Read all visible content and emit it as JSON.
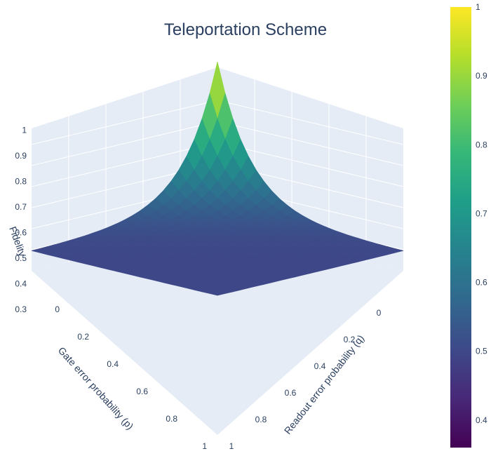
{
  "chart_data": {
    "type": "surface",
    "title": "Teleportation Scheme",
    "x_axis": {
      "label": "Gate error probability (p)",
      "range": [
        0,
        1
      ],
      "ticks": [
        "0",
        "0.2",
        "0.4",
        "0.6",
        "0.8",
        "1"
      ]
    },
    "y_axis": {
      "label": "Readout error probability (q)",
      "range": [
        0,
        1
      ],
      "ticks": [
        "0",
        "0.2",
        "0.4",
        "0.6",
        "0.8",
        "1"
      ]
    },
    "z_axis": {
      "label": "Fidelity",
      "range": [
        0.3,
        1
      ],
      "ticks": [
        "0.3",
        "0.4",
        "0.5",
        "0.6",
        "0.7",
        "0.8",
        "0.9",
        "1"
      ]
    },
    "colorscale": "Viridis",
    "colorbar": {
      "range": [
        0.36,
        1
      ],
      "ticks": [
        "0.4",
        "0.5",
        "0.6",
        "0.7",
        "0.8",
        "0.9",
        "1"
      ]
    },
    "surface_points": [
      {
        "p": 0,
        "q": 0,
        "fidelity": 1.0
      },
      {
        "p": 0.2,
        "q": 0,
        "fidelity": 0.63
      },
      {
        "p": 0.4,
        "q": 0,
        "fidelity": 0.52
      },
      {
        "p": 0.6,
        "q": 0,
        "fidelity": 0.5
      },
      {
        "p": 1,
        "q": 0,
        "fidelity": 0.5
      },
      {
        "p": 0,
        "q": 0.2,
        "fidelity": 0.63
      },
      {
        "p": 0,
        "q": 0.6,
        "fidelity": 0.5
      },
      {
        "p": 0,
        "q": 1,
        "fidelity": 0.5
      },
      {
        "p": 1,
        "q": 1,
        "fidelity": 0.5
      }
    ]
  },
  "colors": {
    "background": "#ffffff",
    "pane": "#e5ecf6",
    "grid": "#ffffff",
    "text": "#2a3f5f",
    "viridis": [
      "#440154",
      "#482878",
      "#3e4989",
      "#31688e",
      "#26828e",
      "#1f9e89",
      "#35b779",
      "#6ece58",
      "#b5de2b",
      "#fde725"
    ]
  }
}
